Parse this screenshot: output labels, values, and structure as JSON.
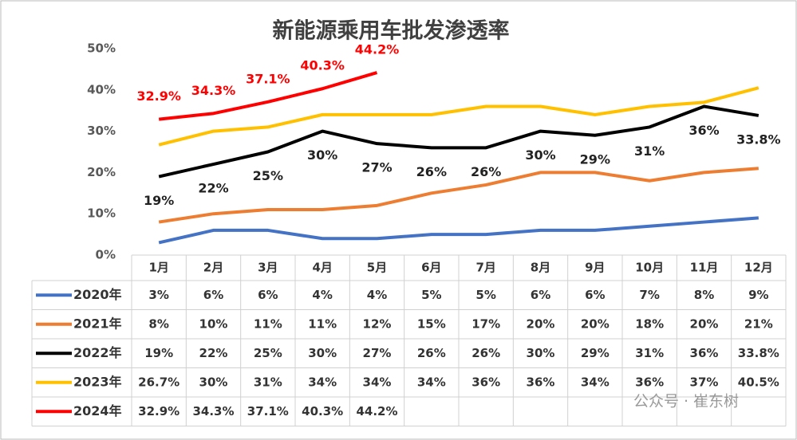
{
  "chart_data": {
    "type": "line",
    "title": "新能源乘用车批发渗透率",
    "categories": [
      "1月",
      "2月",
      "3月",
      "4月",
      "5月",
      "6月",
      "7月",
      "8月",
      "9月",
      "10月",
      "11月",
      "12月"
    ],
    "ylim": [
      0,
      50
    ],
    "yticks": [
      {
        "value": 0,
        "label": "0%"
      },
      {
        "value": 10,
        "label": "10%"
      },
      {
        "value": 20,
        "label": "20%"
      },
      {
        "value": 30,
        "label": "30%"
      },
      {
        "value": 40,
        "label": "40%"
      },
      {
        "value": 50,
        "label": "50%"
      }
    ],
    "grid": false,
    "series": [
      {
        "name": "2020年",
        "color": "#4472c4",
        "values": [
          3,
          6,
          6,
          4,
          4,
          5,
          5,
          6,
          6,
          7,
          8,
          9
        ],
        "value_labels": [
          "3%",
          "6%",
          "6%",
          "4%",
          "4%",
          "5%",
          "5%",
          "6%",
          "6%",
          "7%",
          "8%",
          "9%"
        ]
      },
      {
        "name": "2021年",
        "color": "#ed7d31",
        "values": [
          8,
          10,
          11,
          11,
          12,
          15,
          17,
          20,
          20,
          18,
          20,
          21
        ],
        "value_labels": [
          "8%",
          "10%",
          "11%",
          "11%",
          "12%",
          "15%",
          "17%",
          "20%",
          "20%",
          "18%",
          "20%",
          "21%"
        ]
      },
      {
        "name": "2022年",
        "color": "#000000",
        "values": [
          19,
          22,
          25,
          30,
          27,
          26,
          26,
          30,
          29,
          31,
          36,
          33.8
        ],
        "value_labels": [
          "19%",
          "22%",
          "25%",
          "30%",
          "27%",
          "26%",
          "26%",
          "30%",
          "29%",
          "31%",
          "36%",
          "33.8%"
        ]
      },
      {
        "name": "2023年",
        "color": "#ffc000",
        "values": [
          26.7,
          30,
          31,
          34,
          34,
          34,
          36,
          36,
          34,
          36,
          37,
          40.5
        ],
        "value_labels": [
          "26.7%",
          "30%",
          "31%",
          "34%",
          "34%",
          "34%",
          "36%",
          "36%",
          "34%",
          "36%",
          "37%",
          "40.5%"
        ]
      },
      {
        "name": "2024年",
        "color": "#ff0000",
        "values": [
          32.9,
          34.3,
          37.1,
          40.3,
          44.2,
          null,
          null,
          null,
          null,
          null,
          null,
          null
        ],
        "value_labels": [
          "32.9%",
          "34.3%",
          "37.1%",
          "40.3%",
          "44.2%",
          null,
          null,
          null,
          null,
          null,
          null,
          null
        ]
      }
    ],
    "watermark": "公众号 · 崔东树"
  }
}
